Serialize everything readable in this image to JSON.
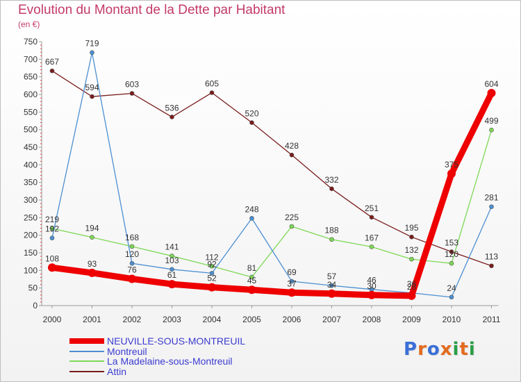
{
  "header": {
    "title": "Evolution du Montant de la Dette par Habitant",
    "subtitle": "(en €)"
  },
  "logo": {
    "text": "Proxiti",
    "letter_colors": [
      "#3a6fd8",
      "#e36b1e",
      "#3a6fd8",
      "#e36b1e",
      "#2a9e46",
      "#e36b1e",
      "#2a9e46"
    ]
  },
  "chart_data": {
    "type": "line",
    "x": [
      2000,
      2001,
      2002,
      2003,
      2004,
      2005,
      2006,
      2007,
      2008,
      2009,
      2010,
      2011
    ],
    "ylim": [
      0,
      750
    ],
    "yticks": [
      0,
      50,
      100,
      150,
      200,
      250,
      300,
      350,
      400,
      450,
      500,
      550,
      600,
      650,
      700,
      750
    ],
    "grid": false,
    "legend_position": "bottom-left",
    "series": [
      {
        "name": "NEUVILLE-SOUS-MONTREUIL",
        "color": "#ee0000",
        "values": [
          108,
          93,
          76,
          61,
          52,
          45,
          37,
          34,
          30,
          28,
          375,
          604
        ],
        "labels": [
          "108",
          "93",
          "76",
          "61",
          "52",
          "45",
          "37",
          "34",
          "30",
          "28",
          "375",
          "604"
        ]
      },
      {
        "name": "Montreuil",
        "color": "#4b8fd1",
        "values": [
          192,
          719,
          120,
          103,
          92,
          248,
          69,
          57,
          46,
          36,
          24,
          281
        ],
        "labels": [
          "192",
          "719",
          "120",
          "103",
          "92",
          "248",
          "69",
          "57",
          "46",
          "36",
          "24",
          "281"
        ]
      },
      {
        "name": "La Madelaine-sous-Montreuil",
        "color": "#7dd855",
        "values": [
          219,
          194,
          168,
          141,
          112,
          81,
          225,
          188,
          167,
          132,
          120,
          499
        ],
        "labels": [
          "219",
          "194",
          "168",
          "141",
          "112",
          "81",
          "225",
          "188",
          "167",
          "132",
          "120",
          "499"
        ]
      },
      {
        "name": "Attin",
        "color": "#7a1b1b",
        "values": [
          667,
          594,
          603,
          536,
          605,
          520,
          428,
          332,
          251,
          195,
          153,
          113
        ],
        "labels": [
          "667",
          "594",
          "603",
          "536",
          "605",
          "520",
          "428",
          "332",
          "251",
          "195",
          "153",
          "113"
        ]
      }
    ]
  }
}
